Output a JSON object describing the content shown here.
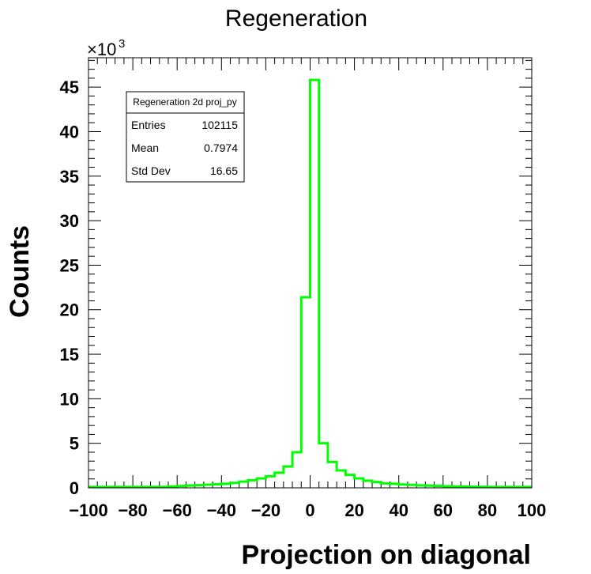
{
  "chart_data": {
    "type": "bar",
    "title": "Regeneration",
    "xlabel": "Projection on diagonal",
    "ylabel": "Counts",
    "y_multiplier_label": "×10",
    "y_multiplier_exponent": "3",
    "xlim": [
      -100,
      100
    ],
    "ylim": [
      0,
      48.3
    ],
    "x_ticks": [
      -100,
      -80,
      -60,
      -40,
      -20,
      0,
      20,
      40,
      60,
      80,
      100
    ],
    "x_tick_labels": [
      "−100",
      "−80",
      "−60",
      "−40",
      "−20",
      "0",
      "20",
      "40",
      "60",
      "80",
      "100"
    ],
    "y_ticks": [
      0,
      5,
      10,
      15,
      20,
      25,
      30,
      35,
      40,
      45
    ],
    "y_tick_labels": [
      "0",
      "5",
      "10",
      "15",
      "20",
      "25",
      "30",
      "35",
      "40",
      "45"
    ],
    "bin_width": 4,
    "bin_edges_start": -100,
    "series": [
      {
        "values": [
          0.1,
          0.1,
          0.1,
          0.1,
          0.1,
          0.1,
          0.1,
          0.1,
          0.1,
          0.15,
          0.2,
          0.25,
          0.3,
          0.35,
          0.4,
          0.45,
          0.55,
          0.7,
          0.85,
          1.05,
          1.3,
          1.7,
          2.4,
          4.0,
          21.4,
          45.8,
          5.0,
          2.9,
          1.95,
          1.45,
          1.05,
          0.8,
          0.65,
          0.5,
          0.45,
          0.38,
          0.33,
          0.28,
          0.24,
          0.21,
          0.18,
          0.16,
          0.14,
          0.12,
          0.11,
          0.1,
          0.1,
          0.1,
          0.1,
          0.1
        ],
        "color": "#00ff00"
      }
    ],
    "stats_box": {
      "name": "Regeneration 2d proj_py",
      "rows": [
        {
          "label": "Entries",
          "value": "102115"
        },
        {
          "label": "Mean",
          "value": "0.7974"
        },
        {
          "label": "Std Dev",
          "value": "16.65"
        }
      ]
    },
    "grid": false
  }
}
